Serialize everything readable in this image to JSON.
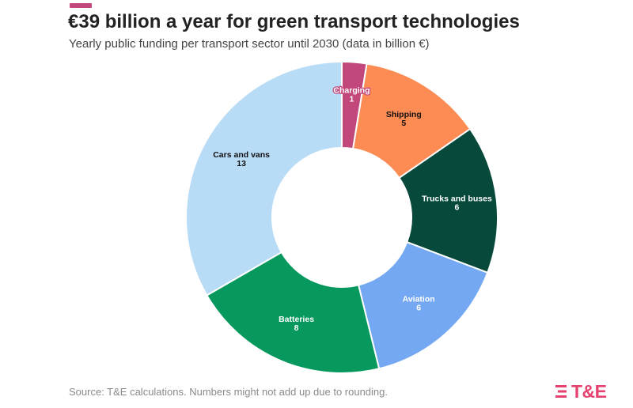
{
  "header": {
    "title": "€39 billion a year for green transport technologies",
    "subtitle": "Yearly public funding per transport sector until 2030 (data in billion €)"
  },
  "footer": {
    "source": "Source: T&E calculations. Numbers might not add up due to rounding.",
    "logo_text": "T&E"
  },
  "colors": {
    "accent": "#c2477a",
    "logo": "#e5426f"
  },
  "chart_data": {
    "type": "pie",
    "style": "donut",
    "title": "€39 billion a year for green transport technologies",
    "subtitle": "Yearly public funding per transport sector until 2030 (data in billion €)",
    "unit": "billion €",
    "slices": [
      {
        "label": "Charging",
        "value": 1,
        "color": "#c2477a",
        "text_color": "#ffffff"
      },
      {
        "label": "Shipping",
        "value": 5,
        "color": "#fd8b54",
        "text_color": "#111111"
      },
      {
        "label": "Trucks and buses",
        "value": 6,
        "color": "#07493a",
        "text_color": "#ffffff"
      },
      {
        "label": "Aviation",
        "value": 6,
        "color": "#75a8f2",
        "text_color": "#ffffff"
      },
      {
        "label": "Batteries",
        "value": 8,
        "color": "#07985e",
        "text_color": "#ffffff"
      },
      {
        "label": "Cars and vans",
        "value": 13,
        "color": "#b8dbf6",
        "text_color": "#111111"
      }
    ]
  }
}
